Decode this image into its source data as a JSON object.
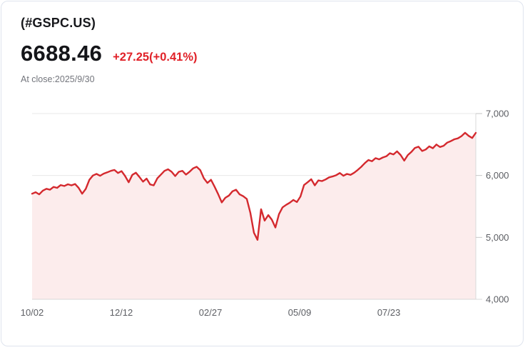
{
  "header": {
    "symbol": "(#GSPC.US)",
    "price": "6688.46",
    "change": "+27.25(+0.41%)",
    "as_of": "At close:2025/9/30"
  },
  "colors": {
    "line": "#d4292e",
    "fill": "#fcecec",
    "change_text": "#e02128",
    "grid": "#e8e8e8",
    "axis": "#d9d9d9",
    "tick": "#c6c6c6",
    "axis_label": "#5c5e63",
    "title_text": "#17181c"
  },
  "chart_data": {
    "type": "area",
    "title": "#GSPC.US price history, 2024/10/02 - 2025/9/30",
    "xlabel": "",
    "ylabel": "",
    "ylim": [
      4000,
      7000
    ],
    "grid": true,
    "legend": false,
    "y_ticks": [
      {
        "label": "7,000",
        "value": 7000
      },
      {
        "label": "6,000",
        "value": 6000
      },
      {
        "label": "5,000",
        "value": 5000
      },
      {
        "label": "4,000",
        "value": 4000
      }
    ],
    "x_ticks": [
      {
        "label": "10/02",
        "f": 0.0
      },
      {
        "label": "12/12",
        "f": 0.201
      },
      {
        "label": "02/27",
        "f": 0.402
      },
      {
        "label": "05/09",
        "f": 0.603
      },
      {
        "label": "07/23",
        "f": 0.804
      }
    ],
    "values": [
      5705,
      5730,
      5695,
      5755,
      5785,
      5770,
      5815,
      5800,
      5845,
      5830,
      5858,
      5840,
      5862,
      5800,
      5705,
      5783,
      5930,
      6000,
      6025,
      5995,
      6030,
      6050,
      6075,
      6090,
      6040,
      6070,
      5990,
      5890,
      6010,
      6045,
      5975,
      5900,
      5950,
      5855,
      5840,
      5955,
      6015,
      6075,
      6100,
      6060,
      5990,
      6060,
      6075,
      6015,
      6060,
      6115,
      6140,
      6085,
      5955,
      5880,
      5930,
      5820,
      5700,
      5565,
      5640,
      5675,
      5745,
      5770,
      5695,
      5665,
      5620,
      5395,
      5075,
      4960,
      5455,
      5270,
      5360,
      5285,
      5160,
      5375,
      5485,
      5525,
      5560,
      5605,
      5570,
      5660,
      5845,
      5890,
      5940,
      5840,
      5920,
      5910,
      5935,
      5970,
      5985,
      6005,
      6040,
      5995,
      6025,
      6010,
      6045,
      6090,
      6140,
      6200,
      6250,
      6230,
      6280,
      6260,
      6290,
      6310,
      6360,
      6340,
      6390,
      6330,
      6240,
      6330,
      6380,
      6445,
      6465,
      6395,
      6420,
      6470,
      6440,
      6500,
      6460,
      6480,
      6530,
      6555,
      6585,
      6600,
      6635,
      6690,
      6640,
      6605,
      6688
    ]
  }
}
